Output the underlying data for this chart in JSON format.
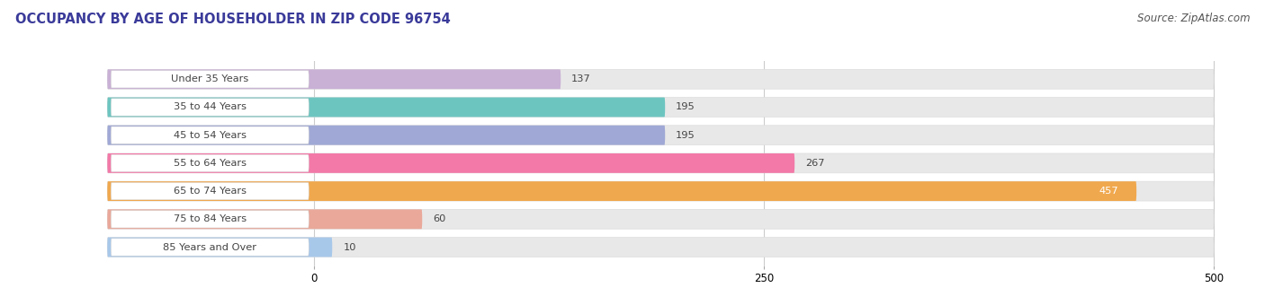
{
  "title": "OCCUPANCY BY AGE OF HOUSEHOLDER IN ZIP CODE 96754",
  "source": "Source: ZipAtlas.com",
  "categories": [
    "Under 35 Years",
    "35 to 44 Years",
    "45 to 54 Years",
    "55 to 64 Years",
    "65 to 74 Years",
    "75 to 84 Years",
    "85 Years and Over"
  ],
  "values": [
    137,
    195,
    195,
    267,
    457,
    60,
    10
  ],
  "bar_colors": [
    "#c9b0d5",
    "#6dc5c0",
    "#a0a9d5",
    "#f279a8",
    "#f0a84e",
    "#e9a89a",
    "#a8c8ea"
  ],
  "bar_bg_color": "#e8e8e8",
  "bar_label_bg": "#f5f5f5",
  "xlim_data": [
    0,
    500
  ],
  "xticks": [
    0,
    250,
    500
  ],
  "label_inside": [
    false,
    false,
    false,
    false,
    true,
    false,
    false
  ],
  "title_fontsize": 10.5,
  "source_fontsize": 8.5,
  "bar_height": 0.7,
  "background_color": "#ffffff",
  "text_color": "#444444",
  "title_color": "#3a3a9a"
}
